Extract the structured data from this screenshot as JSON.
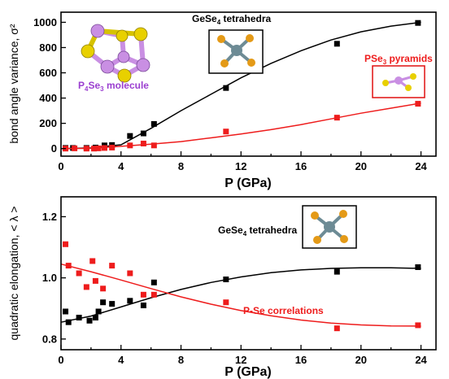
{
  "colors": {
    "black": "#000000",
    "red": "#ee1c1c",
    "purple": "#9b3fd0",
    "molecule_p": "#c98fe3",
    "molecule_se": "#e8d000",
    "box_black": "#000000",
    "box_red": "#e01010",
    "inset_ge": "#6d8b95",
    "inset_se": "#e49a17"
  },
  "chart_data": [
    {
      "type": "scatter",
      "xlabel": "P (GPa)",
      "ylabel": "bond angle variance, σ²",
      "xlim": [
        0,
        25
      ],
      "ylim": [
        -60,
        1080
      ],
      "xticks": [
        "0",
        "4",
        "8",
        "12",
        "16",
        "20",
        "24"
      ],
      "yticks": [
        "0",
        "200",
        "400",
        "600",
        "800",
        "1000"
      ],
      "annotations": {
        "gese4": "GeSe4 tetrahedra",
        "pse3": "PSe3 pyramids",
        "molecule": "P4Se3 molecule"
      },
      "series": [
        {
          "name": "GeSe4 tetrahedra",
          "color": "black",
          "marker": "square",
          "x": [
            0.3,
            0.8,
            1.7,
            2.3,
            2.9,
            3.4,
            4.6,
            5.5,
            6.2,
            11.0,
            18.4,
            23.8
          ],
          "y": [
            5,
            5,
            5,
            8,
            25,
            28,
            100,
            120,
            195,
            480,
            830,
            995
          ],
          "fit": {
            "x": [
              0,
              2,
              4,
              6,
              8,
              10,
              12,
              14,
              16,
              18,
              20,
              22,
              24
            ],
            "y": [
              0,
              5,
              30,
              160,
              300,
              430,
              560,
              675,
              775,
              860,
              925,
              970,
              1000
            ]
          }
        },
        {
          "name": "PSe3 pyramids",
          "color": "red",
          "marker": "square",
          "x": [
            0.3,
            0.9,
            1.7,
            2.2,
            2.5,
            2.9,
            3.4,
            4.6,
            5.5,
            6.2,
            11.0,
            18.4,
            23.8
          ],
          "y": [
            0,
            2,
            0,
            0,
            2,
            5,
            8,
            25,
            40,
            25,
            135,
            245,
            355
          ],
          "fit": {
            "x": [
              0,
              2,
              4,
              6,
              8,
              10,
              12,
              14,
              16,
              18,
              20,
              22,
              24
            ],
            "y": [
              0,
              2,
              18,
              35,
              55,
              85,
              115,
              150,
              190,
              235,
              280,
              320,
              360
            ]
          }
        }
      ]
    },
    {
      "type": "scatter",
      "xlabel": "P (GPa)",
      "ylabel": "quadratic elongation, < λ >",
      "xlim": [
        0,
        25
      ],
      "ylim": [
        0.765,
        1.265
      ],
      "xticks": [
        "0",
        "4",
        "8",
        "12",
        "16",
        "20",
        "24"
      ],
      "yticks": [
        "0.8",
        "1.0",
        "1.2"
      ],
      "annotations": {
        "gese4": "GeSe4 tetrahedra",
        "pse": "P-Se correlations"
      },
      "series": [
        {
          "name": "GeSe4 tetrahedra",
          "color": "black",
          "marker": "square",
          "x": [
            0.3,
            0.5,
            1.2,
            1.9,
            2.3,
            2.5,
            2.8,
            3.4,
            4.6,
            5.5,
            6.2,
            11.0,
            18.4,
            23.8
          ],
          "y": [
            0.89,
            0.855,
            0.87,
            0.86,
            0.87,
            0.89,
            0.92,
            0.915,
            0.925,
            0.91,
            0.985,
            0.995,
            1.02,
            1.035
          ],
          "fit": {
            "x": [
              0,
              2,
              4,
              6,
              8,
              10,
              12,
              14,
              16,
              18,
              20,
              22,
              24
            ],
            "y": [
              0.855,
              0.875,
              0.905,
              0.935,
              0.962,
              0.985,
              1.003,
              1.017,
              1.026,
              1.031,
              1.033,
              1.033,
              1.031
            ]
          }
        },
        {
          "name": "P-Se correlations",
          "color": "red",
          "marker": "square",
          "x": [
            0.3,
            0.5,
            1.2,
            1.7,
            2.1,
            2.3,
            2.8,
            3.4,
            4.6,
            5.5,
            6.2,
            11.0,
            18.4,
            23.8
          ],
          "y": [
            1.11,
            1.04,
            1.015,
            0.97,
            1.055,
            0.99,
            0.965,
            1.04,
            1.015,
            0.945,
            0.945,
            0.92,
            0.835,
            0.845
          ],
          "fit": {
            "x": [
              0,
              2,
              4,
              6,
              8,
              10,
              12,
              14,
              16,
              18,
              20,
              22,
              24
            ],
            "y": [
              1.045,
              1.02,
              0.993,
              0.965,
              0.938,
              0.914,
              0.893,
              0.876,
              0.862,
              0.852,
              0.846,
              0.843,
              0.842
            ]
          }
        }
      ]
    }
  ]
}
